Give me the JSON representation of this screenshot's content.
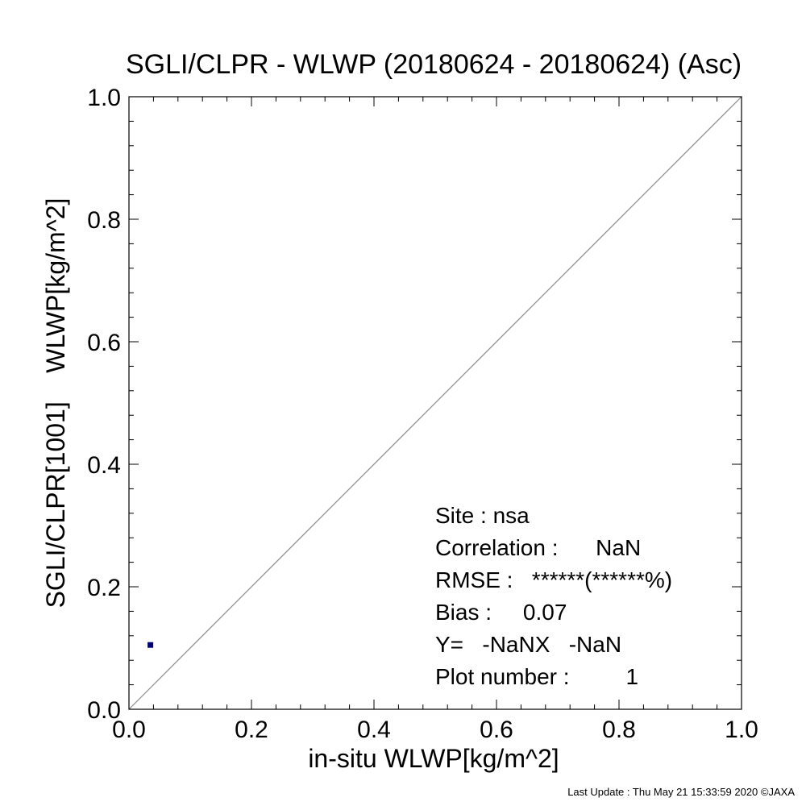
{
  "chart_data": {
    "type": "scatter",
    "title": "SGLI/CLPR - WLWP (20180624 - 20180624) (Asc)",
    "xlabel": "in-situ WLWP[kg/m^2]",
    "ylabel": "SGLI/CLPR[1001]    WLWP[kg/m^2]",
    "xlim": [
      0.0,
      1.0
    ],
    "ylim": [
      0.0,
      1.0
    ],
    "x_ticks": [
      "0.0",
      "0.2",
      "0.4",
      "0.6",
      "0.8",
      "1.0"
    ],
    "y_ticks": [
      "0.0",
      "0.2",
      "0.4",
      "0.6",
      "0.8",
      "1.0"
    ],
    "x_tick_values": [
      0.0,
      0.2,
      0.4,
      0.6,
      0.8,
      1.0
    ],
    "y_tick_values": [
      0.0,
      0.2,
      0.4,
      0.6,
      0.8,
      1.0
    ],
    "minor_ticks_per_major": 5,
    "grid": false,
    "reference_line": "1:1",
    "points": [
      {
        "x": 0.035,
        "y": 0.105
      }
    ],
    "point_color": "#00007f",
    "stats": [
      "Site : nsa",
      "Correlation :      NaN",
      "RMSE :   ******(******%)",
      "Bias :     0.07",
      "Y=   -NaNX   -NaN",
      "Plot number :         1"
    ]
  },
  "footer": "Last Update : Thu May 21 15:33:59 2020  ©JAXA"
}
